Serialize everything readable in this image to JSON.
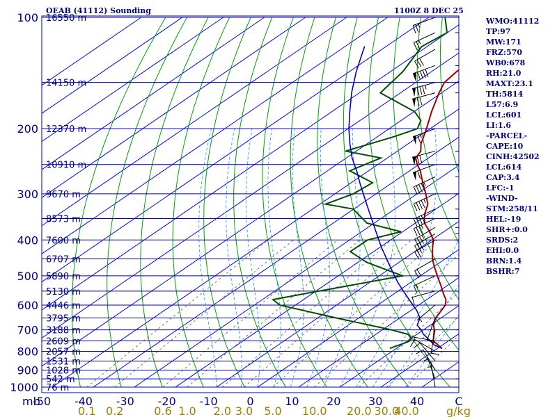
{
  "header": {
    "title": "OEAB (41112) Sounding",
    "valid_time": "1100Z  8 DEC 25"
  },
  "indices": [
    "WMO:41112",
    "TP:97",
    "MW:171",
    "FRZ:570",
    "WB0:678",
    "RH:21.0",
    "MAXT:23.1",
    "TH:5814",
    "L57:6.9",
    "LCL:601",
    "LI:1.6",
    "-PARCEL-",
    "CAPE:10",
    "CINH:42502",
    "LCL:614",
    "CAP:3.4",
    "LFC:-1",
    "-WIND-",
    "STM:258/11",
    "HEL:-19",
    "SHR+:0.0",
    "SRDS:2",
    "EHI:0.0",
    "BRN:1.4",
    "BSHR:7"
  ],
  "colors": {
    "isobar": "#0000a0",
    "isotherm": "#0000ff",
    "dry_adiabat": "#00a000",
    "moist_adiabat": "#40a0ff",
    "mixing_ratio": "#707070",
    "temperature": "#a00000",
    "dewpoint": "#005000",
    "parcel": "#0000c0",
    "axis_text": "#000080",
    "mixing_ratio_text": "#a08000"
  },
  "chart_data": {
    "type": "line",
    "title": "OEAB (41112) Sounding",
    "xlabel": "C",
    "ylabel": "mb",
    "x_axis_unit": "C",
    "y_axis_unit": "mb",
    "mixing_ratio_unit": "g/kg",
    "xlim": [
      -50,
      50
    ],
    "ylim": [
      1000,
      100
    ],
    "temperature_ticks": [
      -50,
      -40,
      -30,
      -20,
      -10,
      0,
      10,
      20,
      30,
      40
    ],
    "pressure_ticks": [
      100,
      200,
      300,
      400,
      500,
      600,
      700,
      800,
      900,
      1000
    ],
    "pressure_tick_labels": [
      "100",
      "200",
      "300",
      "400",
      "500",
      "600",
      "700",
      "800",
      "900",
      "1000"
    ],
    "height_labels": [
      {
        "p": 100,
        "label": "16550 m"
      },
      {
        "p": 150,
        "label": "14150 m"
      },
      {
        "p": 200,
        "label": "12370 m"
      },
      {
        "p": 250,
        "label": "10910 m"
      },
      {
        "p": 300,
        "label": "9670 m"
      },
      {
        "p": 350,
        "label": "8573 m"
      },
      {
        "p": 400,
        "label": "7600 m"
      },
      {
        "p": 450,
        "label": "6707 m"
      },
      {
        "p": 500,
        "label": "5890 m"
      },
      {
        "p": 550,
        "label": "5130 m"
      },
      {
        "p": 600,
        "label": "4446 m"
      },
      {
        "p": 650,
        "label": "3795 m"
      },
      {
        "p": 700,
        "label": "3188 m"
      },
      {
        "p": 750,
        "label": "2609 m"
      },
      {
        "p": 800,
        "label": "2057 m"
      },
      {
        "p": 850,
        "label": "1531 m"
      },
      {
        "p": 900,
        "label": "1028 m"
      },
      {
        "p": 950,
        "label": "542 m"
      },
      {
        "p": 1000,
        "label": "76 m"
      }
    ],
    "mixing_ratio_labels": [
      {
        "w": 0.1,
        "label": "0.1"
      },
      {
        "w": 0.2,
        "label": "0.2"
      },
      {
        "w": 0.6,
        "label": "0.6"
      },
      {
        "w": 1.0,
        "label": "1.0"
      },
      {
        "w": 2.0,
        "label": "2.0"
      },
      {
        "w": 3.0,
        "label": "3.0"
      },
      {
        "w": 5.0,
        "label": "5.0"
      },
      {
        "w": 10.0,
        "label": "10.0"
      },
      {
        "w": 20.0,
        "label": "20.0"
      },
      {
        "w": 30.0,
        "label": "30.0"
      },
      {
        "w": 40.0,
        "label": "40.0"
      }
    ],
    "series": [
      {
        "key": "temperature",
        "points": [
          [
            785,
            31.0
          ],
          [
            750,
            26.3
          ],
          [
            700,
            22.6
          ],
          [
            680,
            20.8
          ],
          [
            650,
            18.7
          ],
          [
            600,
            16.5
          ],
          [
            580,
            14.7
          ],
          [
            560,
            12.1
          ],
          [
            530,
            8.3
          ],
          [
            500,
            4.1
          ],
          [
            470,
            -0.2
          ],
          [
            450,
            -3.1
          ],
          [
            420,
            -7.0
          ],
          [
            400,
            -9.6
          ],
          [
            380,
            -13.4
          ],
          [
            360,
            -17.8
          ],
          [
            340,
            -21.0
          ],
          [
            320,
            -23.7
          ],
          [
            300,
            -27.9
          ],
          [
            280,
            -32.6
          ],
          [
            260,
            -37.4
          ],
          [
            250,
            -40.4
          ],
          [
            240,
            -43.1
          ],
          [
            230,
            -44.3
          ],
          [
            220,
            -46.8
          ],
          [
            200,
            -50.9
          ],
          [
            180,
            -55.7
          ],
          [
            160,
            -60.6
          ],
          [
            150,
            -63.0
          ],
          [
            140,
            -63.9
          ],
          [
            130,
            -63.9
          ],
          [
            120,
            -64.5
          ],
          [
            110,
            -64.2
          ],
          [
            104,
            -66.4
          ],
          [
            100,
            -69.5
          ]
        ]
      },
      {
        "key": "dewpoint",
        "points": [
          [
            785,
            18.4
          ],
          [
            760,
            20.1
          ],
          [
            750,
            20.6
          ],
          [
            740,
            20.2
          ],
          [
            720,
            17.9
          ],
          [
            700,
            12.2
          ],
          [
            650,
            -5.5
          ],
          [
            600,
            -23.8
          ],
          [
            580,
            -27.4
          ],
          [
            560,
            -22.1
          ],
          [
            500,
            -4.3
          ],
          [
            460,
            -17.8
          ],
          [
            430,
            -25.7
          ],
          [
            400,
            -25.6
          ],
          [
            380,
            -20.4
          ],
          [
            360,
            -31.8
          ],
          [
            330,
            -40.1
          ],
          [
            320,
            -48.6
          ],
          [
            300,
            -45.5
          ],
          [
            280,
            -44.8
          ],
          [
            260,
            -54.6
          ],
          [
            240,
            -51.6
          ],
          [
            230,
            -62.6
          ],
          [
            210,
            -55.9
          ],
          [
            200,
            -53.1
          ],
          [
            190,
            -55.2
          ],
          [
            180,
            -59.8
          ],
          [
            160,
            -74.9
          ],
          [
            140,
            -77.0
          ],
          [
            120,
            -81.3
          ],
          [
            110,
            -80.1
          ],
          [
            100,
            -86.0
          ]
        ]
      },
      {
        "key": "parcel",
        "points": [
          [
            785,
            31.0
          ],
          [
            770,
            28.1
          ],
          [
            750,
            25.6
          ],
          [
            720,
            21.6
          ],
          [
            700,
            19.4
          ],
          [
            680,
            16.8
          ],
          [
            650,
            14.9
          ],
          [
            620,
            11.4
          ],
          [
            600,
            8.6
          ],
          [
            560,
            2.8
          ],
          [
            520,
            -3.3
          ],
          [
            500,
            -6.3
          ],
          [
            460,
            -12.6
          ],
          [
            420,
            -19.4
          ],
          [
            400,
            -22.9
          ],
          [
            380,
            -26.5
          ],
          [
            350,
            -32.3
          ],
          [
            320,
            -38.6
          ],
          [
            300,
            -43.1
          ],
          [
            280,
            -47.9
          ],
          [
            260,
            -52.9
          ],
          [
            240,
            -58.6
          ],
          [
            220,
            -64.1
          ],
          [
            200,
            -69.8
          ],
          [
            180,
            -75.6
          ],
          [
            160,
            -81.9
          ],
          [
            140,
            -88.4
          ],
          [
            120,
            -95.2
          ]
        ]
      }
    ],
    "wind_barbs": [
      {
        "p": 100,
        "dir": 250,
        "spd": 25
      },
      {
        "p": 110,
        "dir": 245,
        "spd": 25
      },
      {
        "p": 122,
        "dir": 240,
        "spd": 30
      },
      {
        "p": 135,
        "dir": 250,
        "spd": 90
      },
      {
        "p": 150,
        "dir": 255,
        "spd": 85
      },
      {
        "p": 160,
        "dir": 255,
        "spd": 70
      },
      {
        "p": 200,
        "dir": 250,
        "spd": 65
      },
      {
        "p": 230,
        "dir": 255,
        "spd": 70
      },
      {
        "p": 250,
        "dir": 250,
        "spd": 60
      },
      {
        "p": 270,
        "dir": 245,
        "spd": 45
      },
      {
        "p": 300,
        "dir": 245,
        "spd": 45
      },
      {
        "p": 330,
        "dir": 245,
        "spd": 40
      },
      {
        "p": 350,
        "dir": 245,
        "spd": 35
      },
      {
        "p": 370,
        "dir": 240,
        "spd": 35
      },
      {
        "p": 385,
        "dir": 240,
        "spd": 30
      },
      {
        "p": 400,
        "dir": 240,
        "spd": 25
      },
      {
        "p": 450,
        "dir": 240,
        "spd": 20
      },
      {
        "p": 500,
        "dir": 245,
        "spd": 15
      },
      {
        "p": 550,
        "dir": 255,
        "spd": 10
      },
      {
        "p": 600,
        "dir": 230,
        "spd": 5
      },
      {
        "p": 650,
        "dir": 200,
        "spd": 10
      },
      {
        "p": 700,
        "dir": 190,
        "spd": 10
      },
      {
        "p": 750,
        "dir": 280,
        "spd": 5
      },
      {
        "p": 800,
        "dir": 300,
        "spd": 10
      },
      {
        "p": 850,
        "dir": 320,
        "spd": 10
      },
      {
        "p": 900,
        "dir": 330,
        "spd": 10
      },
      {
        "p": 950,
        "dir": 340,
        "spd": 5
      },
      {
        "p": 1000,
        "dir": 350,
        "spd": 5
      }
    ]
  }
}
